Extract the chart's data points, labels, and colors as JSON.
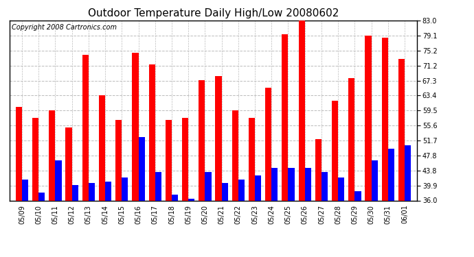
{
  "title": "Outdoor Temperature Daily High/Low 20080602",
  "copyright": "Copyright 2008 Cartronics.com",
  "dates": [
    "05/09",
    "05/10",
    "05/11",
    "05/12",
    "05/13",
    "05/14",
    "05/15",
    "05/16",
    "05/17",
    "05/18",
    "05/19",
    "05/20",
    "05/21",
    "05/22",
    "05/23",
    "05/24",
    "05/25",
    "05/26",
    "05/27",
    "05/28",
    "05/29",
    "05/30",
    "05/31",
    "06/01"
  ],
  "highs": [
    60.5,
    57.5,
    59.5,
    55.0,
    74.0,
    63.5,
    57.0,
    74.5,
    71.5,
    57.0,
    57.5,
    67.5,
    68.5,
    59.5,
    57.5,
    65.5,
    79.5,
    84.0,
    52.0,
    62.0,
    68.0,
    79.0,
    78.5,
    73.0
  ],
  "lows": [
    41.5,
    38.0,
    46.5,
    40.0,
    40.5,
    41.0,
    42.0,
    52.5,
    43.5,
    37.5,
    36.5,
    43.5,
    40.5,
    41.5,
    42.5,
    44.5,
    44.5,
    44.5,
    43.5,
    42.0,
    38.5,
    46.5,
    49.5,
    50.5
  ],
  "high_color": "#ff0000",
  "low_color": "#0000ff",
  "yticks": [
    36.0,
    39.9,
    43.8,
    47.8,
    51.7,
    55.6,
    59.5,
    63.4,
    67.3,
    71.2,
    75.2,
    79.1,
    83.0
  ],
  "ymin": 36.0,
  "ymax": 83.0,
  "background_color": "#ffffff",
  "plot_bg_color": "#ffffff",
  "grid_color": "#bbbbbb",
  "title_fontsize": 11,
  "copyright_fontsize": 7,
  "tick_fontsize": 7,
  "bar_width": 0.38
}
